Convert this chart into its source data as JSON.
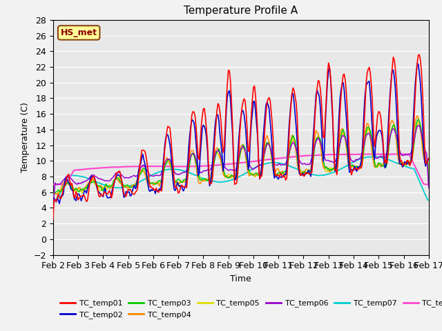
{
  "title": "Temperature Profile A",
  "xlabel": "Time",
  "ylabel": "Temperature (C)",
  "ylim": [
    -2,
    28
  ],
  "xlim": [
    0,
    360
  ],
  "annotation": "HS_met",
  "series_colors": {
    "TC_temp01": "#FF0000",
    "TC_temp02": "#0000CC",
    "TC_temp03": "#00CC00",
    "TC_temp04": "#FF8800",
    "TC_temp05": "#DDDD00",
    "TC_temp06": "#9900CC",
    "TC_temp07": "#00CCCC",
    "TC_temp08": "#FF44CC"
  },
  "xtick_labels": [
    "Feb 2",
    "Feb 3",
    "Feb 4",
    "Feb 5",
    "Feb 6",
    "Feb 7",
    "Feb 8",
    "Feb 9",
    "Feb 10",
    "Feb 11",
    "Feb 12",
    "Feb 13",
    "Feb 14",
    "Feb 15",
    "Feb 16",
    "Feb 17"
  ],
  "xtick_positions": [
    0,
    24,
    48,
    72,
    96,
    120,
    144,
    168,
    192,
    216,
    240,
    264,
    288,
    312,
    336,
    360
  ],
  "plot_bg": "#E8E8E8",
  "fig_bg": "#F2F2F2",
  "grid_color": "#FFFFFF",
  "title_fontsize": 11
}
